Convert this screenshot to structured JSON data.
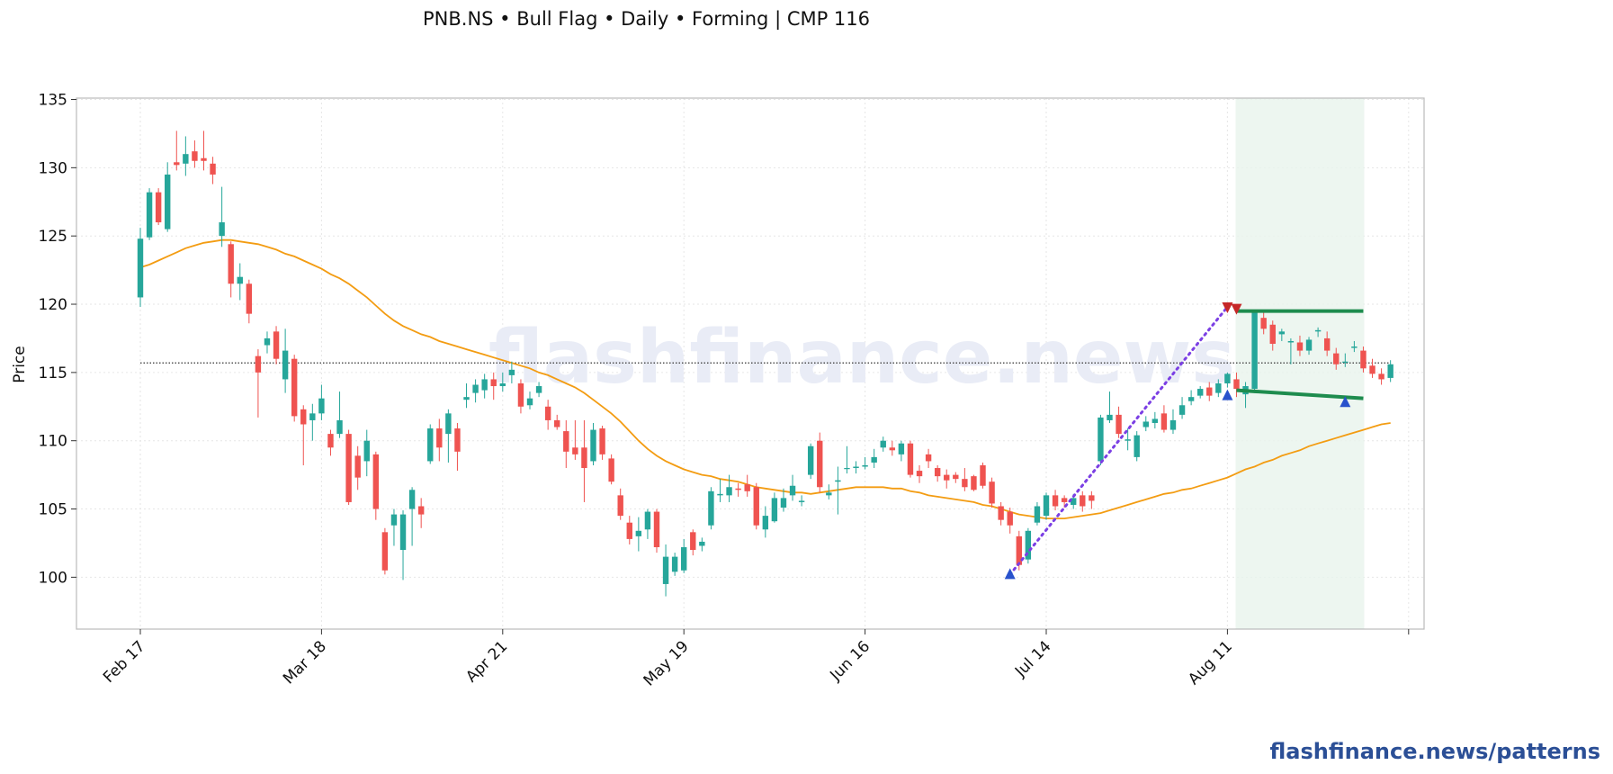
{
  "chart_data": {
    "type": "candlestick",
    "title": "PNB.NS  •  Bull Flag  •  Daily  •  Forming  |  CMP 116",
    "ylabel": "Price",
    "xlabel": "",
    "ylim": [
      96.2,
      135.1
    ],
    "yticks": [
      100,
      105,
      110,
      115,
      120,
      125,
      130,
      135
    ],
    "xticks": [
      {
        "label": "Feb 17",
        "index": 0
      },
      {
        "label": "Mar 18",
        "index": 20
      },
      {
        "label": "Apr 21",
        "index": 40
      },
      {
        "label": "May 19",
        "index": 60
      },
      {
        "label": "Jun 16",
        "index": 80
      },
      {
        "label": "Jul 14",
        "index": 100
      },
      {
        "label": "Aug 11",
        "index": 120
      },
      {
        "label": "",
        "index": 140
      }
    ],
    "grid": true,
    "watermark": "flashfinance.news",
    "footer": "flashfinance.news/patterns",
    "reference_line": 115.7,
    "colors": {
      "up": "#26a69a",
      "down": "#ef5350",
      "ma": "#f39c12",
      "flag": "#1e8c4e",
      "pole": "#7b3fe4",
      "zone": "#e8f4ec",
      "low_marker": "#2952cc",
      "high_marker": "#c62828"
    },
    "candles": [
      [
        120.5,
        124.8,
        125.6,
        119.8
      ],
      [
        124.9,
        128.2,
        128.5,
        124.7
      ],
      [
        128.2,
        126.0,
        128.5,
        125.8
      ],
      [
        125.5,
        129.5,
        130.4,
        125.3
      ],
      [
        130.4,
        130.2,
        132.7,
        129.8
      ],
      [
        130.3,
        131.0,
        132.3,
        129.4
      ],
      [
        131.2,
        130.5,
        132.0,
        130.0
      ],
      [
        130.7,
        130.5,
        132.7,
        129.8
      ],
      [
        130.3,
        129.5,
        130.8,
        128.8
      ],
      [
        125.0,
        126.0,
        128.6,
        124.2
      ],
      [
        124.4,
        121.5,
        124.6,
        120.5
      ],
      [
        121.5,
        122.0,
        123.0,
        120.3
      ],
      [
        121.5,
        119.3,
        121.8,
        118.6
      ],
      [
        116.2,
        115.0,
        116.7,
        111.7
      ],
      [
        117.0,
        117.5,
        118.0,
        116.4
      ],
      [
        118.0,
        116.0,
        118.4,
        115.6
      ],
      [
        114.5,
        116.6,
        118.2,
        113.5
      ],
      [
        116.0,
        111.8,
        116.3,
        111.4
      ],
      [
        112.3,
        111.2,
        112.6,
        108.2
      ],
      [
        111.5,
        112.0,
        112.7,
        110.0
      ],
      [
        112.0,
        113.1,
        114.1,
        111.5
      ],
      [
        110.5,
        109.5,
        110.8,
        108.9
      ],
      [
        110.5,
        111.5,
        113.6,
        110.2
      ],
      [
        110.5,
        105.5,
        110.8,
        105.3
      ],
      [
        108.9,
        107.3,
        109.6,
        106.4
      ],
      [
        108.5,
        110.0,
        110.8,
        107.4
      ],
      [
        109.0,
        105.0,
        109.2,
        104.2
      ],
      [
        103.3,
        100.5,
        103.6,
        100.2
      ],
      [
        103.8,
        104.6,
        105.0,
        102.3
      ],
      [
        102.0,
        104.6,
        104.9,
        99.8
      ],
      [
        105.0,
        106.4,
        106.6,
        102.3
      ],
      [
        105.2,
        104.6,
        105.8,
        103.6
      ],
      [
        108.5,
        110.9,
        111.2,
        108.3
      ],
      [
        110.9,
        109.5,
        111.6,
        108.5
      ],
      [
        110.5,
        112.0,
        112.3,
        108.4
      ],
      [
        110.9,
        109.2,
        111.3,
        107.8
      ],
      [
        113.0,
        113.2,
        114.2,
        112.4
      ],
      [
        113.5,
        114.1,
        114.5,
        112.8
      ],
      [
        113.7,
        114.5,
        114.9,
        113.1
      ],
      [
        114.5,
        114.0,
        115.0,
        113.0
      ],
      [
        114.0,
        114.2,
        115.0,
        113.6
      ],
      [
        114.8,
        115.2,
        115.8,
        114.2
      ],
      [
        114.2,
        112.5,
        114.5,
        112.0
      ],
      [
        112.6,
        113.1,
        113.6,
        112.3
      ],
      [
        113.5,
        114.0,
        114.3,
        113.2
      ],
      [
        112.5,
        111.5,
        113.0,
        110.8
      ],
      [
        111.5,
        111.0,
        111.9,
        110.8
      ],
      [
        110.7,
        109.2,
        111.5,
        108.0
      ],
      [
        109.5,
        109.0,
        111.5,
        108.6
      ],
      [
        109.5,
        108.0,
        111.5,
        105.5
      ],
      [
        108.5,
        110.8,
        111.3,
        108.2
      ],
      [
        110.9,
        109.0,
        111.1,
        108.6
      ],
      [
        108.7,
        107.0,
        109.0,
        106.8
      ],
      [
        106.0,
        104.5,
        106.5,
        104.2
      ],
      [
        104.0,
        102.8,
        104.5,
        102.4
      ],
      [
        103.0,
        103.4,
        104.4,
        101.9
      ],
      [
        103.5,
        104.8,
        105.0,
        102.8
      ],
      [
        104.8,
        102.2,
        105.0,
        101.8
      ],
      [
        99.5,
        101.5,
        102.4,
        98.6
      ],
      [
        100.4,
        101.5,
        101.8,
        100.1
      ],
      [
        100.5,
        102.2,
        102.8,
        100.3
      ],
      [
        103.3,
        102.0,
        103.5,
        101.6
      ],
      [
        102.3,
        102.6,
        102.9,
        101.9
      ],
      [
        103.8,
        106.3,
        106.6,
        103.5
      ],
      [
        106.0,
        106.1,
        107.2,
        105.5
      ],
      [
        106.0,
        106.6,
        107.5,
        105.5
      ],
      [
        106.5,
        106.4,
        106.9,
        105.9
      ],
      [
        106.8,
        106.3,
        107.5,
        105.9
      ],
      [
        106.6,
        103.8,
        106.9,
        103.5
      ],
      [
        103.5,
        104.5,
        105.2,
        102.9
      ],
      [
        104.1,
        105.8,
        106.2,
        104.0
      ],
      [
        105.1,
        105.8,
        106.5,
        104.8
      ],
      [
        106.0,
        106.7,
        107.5,
        105.6
      ],
      [
        105.5,
        105.6,
        106.0,
        105.2
      ],
      [
        107.5,
        109.6,
        109.8,
        107.2
      ],
      [
        110.0,
        106.6,
        110.6,
        106.2
      ],
      [
        106.0,
        106.2,
        106.8,
        105.7
      ],
      [
        107.0,
        107.1,
        108.1,
        104.6
      ],
      [
        108.0,
        108.0,
        109.6,
        107.6
      ],
      [
        108.0,
        108.1,
        108.5,
        107.6
      ],
      [
        108.1,
        108.2,
        108.8,
        107.9
      ],
      [
        108.4,
        108.8,
        109.4,
        108.0
      ],
      [
        109.5,
        110.0,
        110.3,
        109.2
      ],
      [
        109.5,
        109.3,
        110.0,
        108.9
      ],
      [
        109.0,
        109.8,
        110.0,
        108.5
      ],
      [
        109.8,
        107.5,
        110.0,
        107.3
      ],
      [
        107.8,
        107.4,
        108.2,
        106.9
      ],
      [
        109.0,
        108.5,
        109.4,
        108.0
      ],
      [
        108.0,
        107.4,
        108.2,
        107.0
      ],
      [
        107.5,
        107.1,
        107.9,
        106.5
      ],
      [
        107.5,
        107.2,
        107.7,
        106.9
      ],
      [
        107.2,
        106.6,
        108.0,
        106.3
      ],
      [
        107.4,
        106.4,
        107.5,
        106.3
      ],
      [
        108.2,
        106.7,
        108.4,
        106.5
      ],
      [
        107.0,
        105.4,
        107.3,
        105.1
      ],
      [
        105.2,
        104.2,
        105.5,
        103.8
      ],
      [
        104.8,
        103.8,
        105.1,
        103.2
      ],
      [
        103.0,
        100.9,
        103.4,
        100.5
      ],
      [
        101.3,
        103.4,
        103.6,
        101.0
      ],
      [
        104.0,
        105.2,
        105.5,
        103.8
      ],
      [
        104.5,
        106.0,
        106.2,
        104.2
      ],
      [
        106.0,
        105.2,
        106.4,
        104.9
      ],
      [
        105.8,
        105.5,
        106.0,
        105.1
      ],
      [
        105.3,
        105.8,
        106.1,
        105.0
      ],
      [
        106.0,
        105.2,
        106.3,
        104.8
      ],
      [
        106.0,
        105.6,
        106.3,
        105.0
      ],
      [
        108.5,
        111.7,
        111.9,
        108.2
      ],
      [
        111.5,
        111.9,
        113.6,
        111.3
      ],
      [
        111.9,
        110.5,
        112.5,
        110.2
      ],
      [
        110.0,
        110.1,
        110.9,
        109.3
      ],
      [
        108.8,
        110.4,
        110.7,
        108.5
      ],
      [
        111.0,
        111.4,
        111.8,
        110.7
      ],
      [
        111.3,
        111.6,
        112.1,
        110.9
      ],
      [
        112.0,
        110.8,
        112.6,
        110.6
      ],
      [
        110.8,
        111.5,
        112.3,
        110.5
      ],
      [
        111.9,
        112.6,
        113.2,
        111.6
      ],
      [
        112.9,
        113.2,
        113.7,
        112.6
      ],
      [
        113.3,
        113.8,
        114.0,
        113.1
      ],
      [
        113.9,
        113.3,
        114.3,
        112.9
      ],
      [
        113.5,
        114.2,
        114.5,
        113.2
      ],
      [
        114.2,
        114.9,
        115.0,
        113.9
      ],
      [
        114.5,
        113.8,
        115.0,
        113.2
      ],
      [
        113.4,
        114.0,
        114.3,
        112.4
      ],
      [
        113.8,
        119.4,
        119.6,
        113.5
      ],
      [
        119.0,
        118.2,
        119.6,
        117.8
      ],
      [
        118.5,
        117.1,
        118.8,
        116.6
      ],
      [
        117.8,
        118.0,
        118.2,
        117.3
      ],
      [
        117.2,
        117.3,
        117.5,
        115.6
      ],
      [
        117.2,
        116.6,
        117.7,
        116.2
      ],
      [
        116.6,
        117.4,
        117.6,
        116.3
      ],
      [
        118.0,
        118.1,
        118.3,
        117.6
      ],
      [
        117.5,
        116.6,
        118.0,
        116.2
      ],
      [
        116.4,
        115.6,
        116.8,
        115.2
      ],
      [
        115.8,
        115.8,
        116.4,
        115.4
      ],
      [
        116.8,
        116.9,
        117.3,
        116.5
      ],
      [
        116.6,
        115.3,
        116.9,
        115.0
      ],
      [
        115.5,
        114.9,
        116.0,
        114.6
      ],
      [
        114.9,
        114.5,
        115.3,
        114.1
      ],
      [
        114.6,
        115.6,
        115.9,
        114.3
      ]
    ],
    "moving_average": [
      122.7,
      122.9,
      123.2,
      123.5,
      123.8,
      124.1,
      124.3,
      124.5,
      124.6,
      124.7,
      124.7,
      124.6,
      124.5,
      124.4,
      124.2,
      124.0,
      123.7,
      123.5,
      123.2,
      122.9,
      122.6,
      122.2,
      121.9,
      121.5,
      121.0,
      120.5,
      119.9,
      119.3,
      118.8,
      118.4,
      118.1,
      117.8,
      117.6,
      117.3,
      117.1,
      116.9,
      116.7,
      116.5,
      116.3,
      116.1,
      115.9,
      115.7,
      115.5,
      115.3,
      115.0,
      114.8,
      114.5,
      114.2,
      113.9,
      113.5,
      113.0,
      112.5,
      112.0,
      111.4,
      110.7,
      110.0,
      109.4,
      108.9,
      108.5,
      108.2,
      107.9,
      107.7,
      107.5,
      107.4,
      107.2,
      107.1,
      107.0,
      106.8,
      106.6,
      106.5,
      106.4,
      106.3,
      106.2,
      106.2,
      106.1,
      106.2,
      106.3,
      106.4,
      106.5,
      106.6,
      106.6,
      106.6,
      106.6,
      106.5,
      106.5,
      106.3,
      106.2,
      106.0,
      105.9,
      105.8,
      105.7,
      105.6,
      105.5,
      105.3,
      105.2,
      105.0,
      104.8,
      104.6,
      104.5,
      104.4,
      104.3,
      104.3,
      104.3,
      104.4,
      104.5,
      104.6,
      104.7,
      104.9,
      105.1,
      105.3,
      105.5,
      105.7,
      105.9,
      106.1,
      106.2,
      106.4,
      106.5,
      106.7,
      106.9,
      107.1,
      107.3,
      107.6,
      107.9,
      108.1,
      108.4,
      108.6,
      108.9,
      109.1,
      109.3,
      109.6,
      109.8,
      110.0,
      110.2,
      110.4,
      110.6,
      110.8,
      111.0,
      111.2,
      111.3
    ],
    "flagpole": {
      "start_index": 96,
      "start_price": 100.2,
      "end_index": 120,
      "end_price": 119.8
    },
    "flag_upper": {
      "start_index": 121,
      "start_price": 119.5,
      "end_index": 135,
      "end_price": 119.5
    },
    "flag_lower": {
      "start_index": 121,
      "start_price": 113.7,
      "end_index": 135,
      "end_price": 113.1
    },
    "flag_zone": {
      "start_index": 121,
      "end_index": 135
    },
    "low_markers": [
      {
        "index": 96,
        "price": 100.2
      },
      {
        "index": 120,
        "price": 113.3
      },
      {
        "index": 133,
        "price": 112.8
      }
    ],
    "high_markers": [
      {
        "index": 120,
        "price": 119.8
      },
      {
        "index": 121,
        "price": 119.7
      }
    ]
  }
}
